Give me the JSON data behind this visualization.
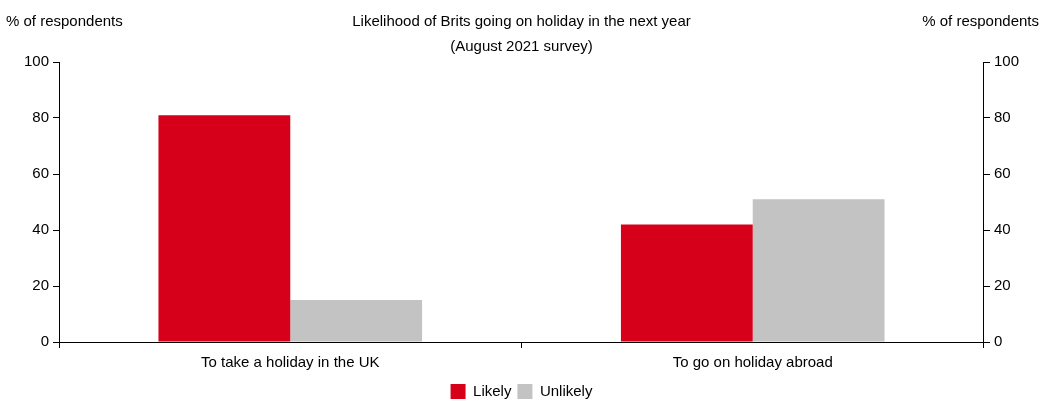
{
  "chart_data": {
    "type": "bar",
    "title": "Likelihood of Brits going on holiday in the next year",
    "subtitle": "(August 2021 survey)",
    "ylabel": "% of respondents",
    "y2label": "% of respondents",
    "categories": [
      "To take a holiday in the UK",
      "To go on holiday abroad"
    ],
    "series": [
      {
        "name": "Likely",
        "color": "#d7001b",
        "values": [
          81,
          42
        ]
      },
      {
        "name": "Unlikely",
        "color": "#c3c3c3",
        "values": [
          15,
          51
        ]
      }
    ],
    "ylim": [
      0,
      100
    ],
    "yticks": [
      0,
      20,
      40,
      60,
      80,
      100
    ],
    "y2lim": [
      0,
      100
    ],
    "y2ticks": [
      0,
      20,
      40,
      60,
      80,
      100
    ],
    "grid": false,
    "legend": "bottom"
  }
}
